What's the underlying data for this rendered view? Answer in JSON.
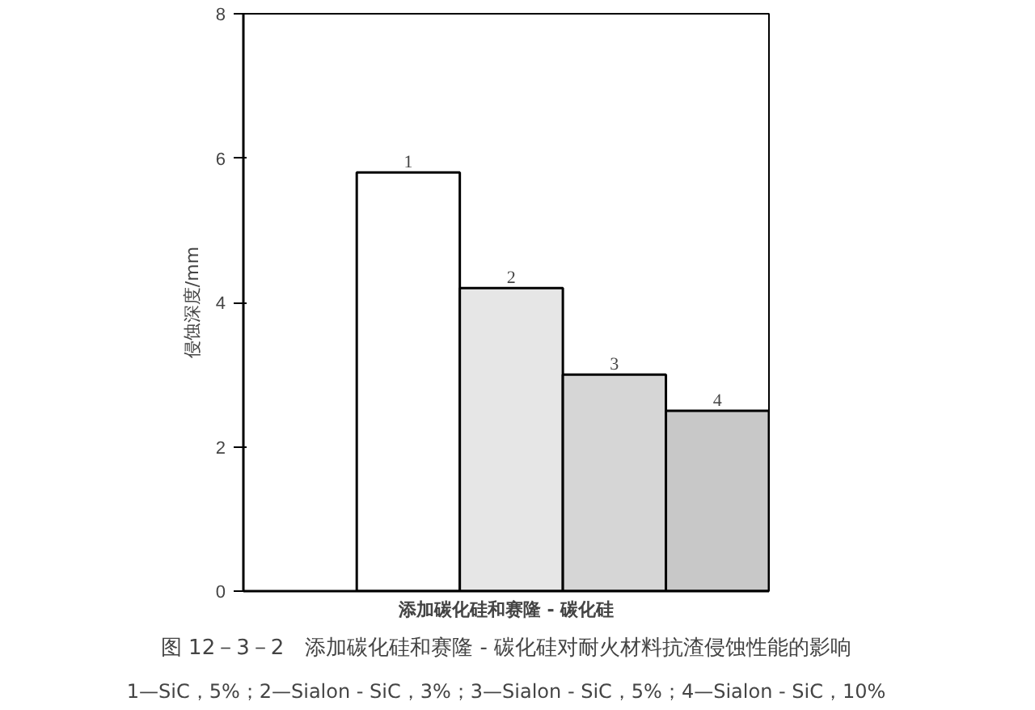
{
  "chart_data": {
    "type": "bar",
    "categories": [
      "1",
      "2",
      "3",
      "4"
    ],
    "values": [
      5.8,
      4.2,
      3.0,
      2.5
    ],
    "colors": [
      "#ffffff",
      "#e6e6e6",
      "#d6d6d6",
      "#c8c8c8"
    ],
    "ylim": [
      0,
      8
    ],
    "yticks": [
      0,
      2,
      4,
      6,
      8
    ],
    "ylabel": "侵蚀深度/mm",
    "xlabel": "添加碳化硅和赛隆 - 碳化硅",
    "title": "图 12－3－2　添加碳化硅和赛隆 - 碳化硅对耐火材料抗渣侵蚀性能的影响",
    "subtitle": "1—SiC，5%；2—Sialon - SiC，3%；3—Sialon - SiC，5%；4—Sialon - SiC，10%",
    "grid": false
  }
}
